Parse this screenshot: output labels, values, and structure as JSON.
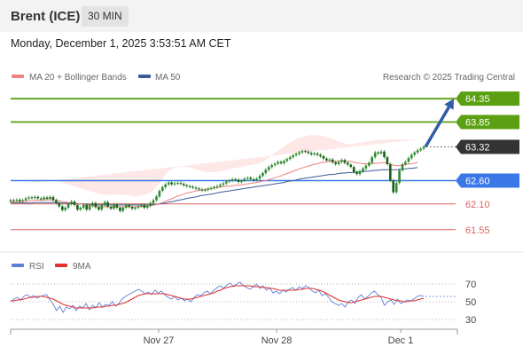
{
  "header": {
    "instrument": "Brent (ICE)",
    "timeframe": "30 MIN"
  },
  "timestamp": "Monday, December 1, 2025 3:53:51 AM CET",
  "colors": {
    "ma20": "#f08080",
    "ma50": "#3a5a98",
    "band_fill": "#fde3e3",
    "green": "#5aa012",
    "blue": "#3b78e7",
    "red": "#e06060",
    "candle": "#2e8b2e",
    "arrow": "#2f5da6",
    "rsi": "#5b7fd6",
    "rsi_ma": "#e23030"
  },
  "legend": {
    "items": [
      {
        "label": "MA 20 + Bollinger Bands",
        "color": "#f08080"
      },
      {
        "label": "MA 50",
        "color": "#3a5a98"
      }
    ],
    "source": "Research © 2025 Trading Central"
  },
  "chart_data": [
    {
      "type": "candlestick",
      "ylim": [
        61.3,
        64.6
      ],
      "x_ticks": [
        "Nov 27",
        "Nov 28",
        "Dec 1"
      ],
      "levels": [
        {
          "value": 64.35,
          "label": "64.35",
          "kind": "resistance"
        },
        {
          "value": 63.85,
          "label": "63.85",
          "kind": "resistance"
        },
        {
          "value": 63.32,
          "label": "63.32",
          "kind": "current"
        },
        {
          "value": 62.6,
          "label": "62.60",
          "kind": "pivot"
        },
        {
          "value": 62.1,
          "label": "62.10",
          "kind": "support"
        },
        {
          "value": 61.55,
          "label": "61.55",
          "kind": "support"
        }
      ],
      "close": [
        62.18,
        62.17,
        62.19,
        62.16,
        62.18,
        62.22,
        62.24,
        62.23,
        62.25,
        62.22,
        62.2,
        62.24,
        62.21,
        62.25,
        62.18,
        62.12,
        62.05,
        61.97,
        62.02,
        62.1,
        62.15,
        62.08,
        61.98,
        62.02,
        62.08,
        61.98,
        62.06,
        62.12,
        62.03,
        61.98,
        62.08,
        62.14,
        62.04,
        62.0,
        62.09,
        62.02,
        61.95,
        62.02,
        62.08,
        62.04,
        62.0,
        62.02,
        62.05,
        62.08,
        62.02,
        62.06,
        62.12,
        62.18,
        62.26,
        62.38,
        62.46,
        62.52,
        62.56,
        62.52,
        62.54,
        62.55,
        62.53,
        62.5,
        62.48,
        62.47,
        62.45,
        62.43,
        62.41,
        62.39,
        62.4,
        62.42,
        62.44,
        62.46,
        62.48,
        62.51,
        62.54,
        62.58,
        62.6,
        62.63,
        62.62,
        62.57,
        62.6,
        62.64,
        62.66,
        62.63,
        62.61,
        62.64,
        62.7,
        62.76,
        62.83,
        62.89,
        62.93,
        62.96,
        63.0,
        62.97,
        63.02,
        63.06,
        63.1,
        63.14,
        63.17,
        63.2,
        63.23,
        63.22,
        63.19,
        63.16,
        63.18,
        63.15,
        63.12,
        63.07,
        63.03,
        63.05,
        62.99,
        62.95,
        63.0,
        63.04,
        62.98,
        62.94,
        62.89,
        62.78,
        62.74,
        62.8,
        62.86,
        62.92,
        62.98,
        63.1,
        63.2,
        63.18,
        63.22,
        63.1,
        62.95,
        62.6,
        62.35,
        62.55,
        62.82,
        62.95,
        63.0,
        63.08,
        63.15,
        63.2,
        63.25,
        63.28,
        63.32
      ],
      "ma20": [
        62.14,
        62.14,
        62.15,
        62.15,
        62.15,
        62.16,
        62.17,
        62.17,
        62.18,
        62.18,
        62.18,
        62.19,
        62.19,
        62.19,
        62.19,
        62.18,
        62.17,
        62.15,
        62.14,
        62.13,
        62.13,
        62.12,
        62.11,
        62.1,
        62.09,
        62.08,
        62.07,
        62.06,
        62.05,
        62.04,
        62.04,
        62.04,
        62.04,
        62.04,
        62.04,
        62.04,
        62.04,
        62.04,
        62.04,
        62.04,
        62.04,
        62.04,
        62.05,
        62.05,
        62.05,
        62.05,
        62.06,
        62.07,
        62.09,
        62.11,
        62.13,
        62.16,
        62.19,
        62.21,
        62.24,
        62.27,
        62.29,
        62.31,
        62.33,
        62.35,
        62.36,
        62.38,
        62.39,
        62.4,
        62.41,
        62.42,
        62.43,
        62.44,
        62.45,
        62.46,
        62.47,
        62.48,
        62.48,
        62.49,
        62.5,
        62.5,
        62.51,
        62.52,
        62.53,
        62.54,
        62.55,
        62.56,
        62.57,
        62.59,
        62.6,
        62.62,
        62.64,
        62.66,
        62.68,
        62.7,
        62.73,
        62.75,
        62.77,
        62.8,
        62.82,
        62.85,
        62.87,
        62.89,
        62.91,
        62.93,
        62.95,
        62.96,
        62.98,
        62.99,
        63.0,
        63.01,
        63.01,
        63.01,
        63.02,
        63.02,
        63.02,
        63.01,
        63.01,
        62.99,
        62.98,
        62.97,
        62.96,
        62.96,
        62.96,
        62.96,
        62.97,
        62.97,
        62.98,
        62.98,
        62.97,
        62.95,
        62.93,
        62.92,
        62.92,
        62.93,
        62.94,
        62.95,
        62.96,
        62.97,
        62.99
      ],
      "ma50": [
        62.12,
        62.12,
        62.12,
        62.12,
        62.12,
        62.12,
        62.12,
        62.12,
        62.13,
        62.13,
        62.13,
        62.13,
        62.13,
        62.13,
        62.13,
        62.13,
        62.12,
        62.12,
        62.12,
        62.11,
        62.11,
        62.11,
        62.1,
        62.1,
        62.1,
        62.09,
        62.09,
        62.09,
        62.08,
        62.08,
        62.08,
        62.08,
        62.08,
        62.08,
        62.08,
        62.08,
        62.08,
        62.08,
        62.08,
        62.08,
        62.08,
        62.08,
        62.08,
        62.08,
        62.08,
        62.08,
        62.08,
        62.09,
        62.09,
        62.1,
        62.11,
        62.12,
        62.14,
        62.15,
        62.16,
        62.18,
        62.19,
        62.2,
        62.22,
        62.23,
        62.24,
        62.25,
        62.27,
        62.28,
        62.29,
        62.3,
        62.31,
        62.32,
        62.34,
        62.35,
        62.36,
        62.37,
        62.38,
        62.39,
        62.4,
        62.41,
        62.42,
        62.43,
        62.44,
        62.45,
        62.46,
        62.47,
        62.48,
        62.49,
        62.5,
        62.51,
        62.52,
        62.53,
        62.54,
        62.55,
        62.56,
        62.58,
        62.59,
        62.6,
        62.61,
        62.63,
        62.64,
        62.65,
        62.66,
        62.67,
        62.68,
        62.69,
        62.7,
        62.71,
        62.72,
        62.73,
        62.73,
        62.74,
        62.75,
        62.76,
        62.76,
        62.77,
        62.77,
        62.78,
        62.78,
        62.79,
        62.79,
        62.8,
        62.8,
        62.81,
        62.82,
        62.82,
        62.83,
        62.83,
        62.83,
        62.83,
        62.83,
        62.83,
        62.84,
        62.84,
        62.85,
        62.86,
        62.86,
        62.87,
        62.88
      ],
      "band_upper": [
        62.5,
        62.5,
        62.52,
        62.52,
        62.53,
        62.55,
        62.56,
        62.57,
        62.58,
        62.59,
        62.59,
        62.6,
        62.6,
        62.61,
        62.61,
        62.6,
        62.58,
        62.55,
        62.53,
        62.52,
        62.5,
        62.48,
        62.46,
        62.44,
        62.42,
        62.4,
        62.38,
        62.36,
        62.34,
        62.32,
        62.31,
        62.3,
        62.3,
        62.3,
        62.3,
        62.3,
        62.3,
        62.29,
        62.29,
        62.28,
        62.27,
        62.26,
        62.27,
        62.28,
        62.29,
        62.31,
        62.34,
        62.39,
        62.46,
        62.55,
        62.64,
        62.73,
        62.8,
        62.84,
        62.87,
        62.89,
        62.9,
        62.9,
        62.89,
        62.88,
        62.86,
        62.84,
        62.82,
        62.8,
        62.79,
        62.78,
        62.78,
        62.78,
        62.79,
        62.8,
        62.81,
        62.83,
        62.84,
        62.86,
        62.87,
        62.88,
        62.89,
        62.9,
        62.92,
        62.93,
        62.94,
        62.95,
        62.97,
        63.0,
        63.04,
        63.09,
        63.14,
        63.19,
        63.24,
        63.28,
        63.33,
        63.37,
        63.41,
        63.45,
        63.48,
        63.51,
        63.53,
        63.55,
        63.56,
        63.57,
        63.57,
        63.57,
        63.56,
        63.55,
        63.53,
        63.51,
        63.49,
        63.46,
        63.43,
        63.41,
        63.39,
        63.38,
        63.38,
        63.39,
        63.4,
        63.41,
        63.42,
        63.43,
        63.44,
        63.45,
        63.46,
        63.47,
        63.47,
        63.47,
        63.48,
        63.48,
        63.48,
        63.48,
        63.48,
        63.48,
        63.48,
        63.48,
        63.48,
        63.48,
        63.48
      ],
      "band_lower": [
        61.78,
        61.78,
        61.78,
        61.78,
        61.77,
        61.77,
        61.78,
        61.77,
        61.78,
        61.77,
        61.77,
        61.78,
        61.78,
        61.77,
        61.77,
        61.76,
        61.76,
        61.75,
        61.75,
        61.74,
        61.76,
        61.76,
        61.76,
        61.76,
        61.76,
        61.76,
        61.76,
        61.76,
        61.76,
        61.76,
        61.77,
        61.78,
        61.78,
        61.78,
        61.78,
        61.78,
        61.78,
        61.79,
        61.79,
        61.8,
        61.81,
        61.82,
        61.83,
        61.82,
        61.81,
        61.79,
        61.78,
        61.75,
        61.72,
        61.67,
        61.62,
        61.59,
        61.58,
        61.58,
        61.61,
        61.65,
        61.68,
        61.72,
        61.77,
        61.82,
        61.86,
        61.92,
        61.96,
        62.0,
        62.03,
        62.06,
        62.08,
        62.1,
        62.11,
        62.12,
        62.13,
        62.13,
        62.12,
        62.12,
        62.13,
        62.12,
        62.13,
        62.14,
        62.14,
        62.15,
        62.16,
        62.17,
        62.17,
        62.18,
        62.16,
        62.15,
        62.14,
        62.13,
        62.12,
        62.12,
        62.13,
        62.13,
        62.13,
        62.15,
        62.16,
        62.19,
        62.21,
        62.23,
        62.26,
        62.29,
        62.33,
        62.35,
        62.4,
        62.43,
        62.47,
        62.51,
        62.53,
        62.56,
        62.61,
        62.63,
        62.65,
        62.64,
        62.64,
        62.59,
        62.56,
        62.53,
        62.51,
        62.49,
        62.48,
        62.47,
        62.47,
        62.47,
        62.48,
        62.49,
        62.47,
        62.42,
        62.38,
        62.36,
        62.36,
        62.38,
        62.4,
        62.42,
        62.44,
        62.46,
        62.5
      ],
      "forecast_arrow": {
        "from": 63.32,
        "to": 64.35
      }
    },
    {
      "type": "line",
      "ylim": [
        20,
        80
      ],
      "y_ticks": [
        70,
        50,
        30
      ],
      "legend": [
        {
          "label": "RSI",
          "color": "#5b7fd6"
        },
        {
          "label": "9MA",
          "color": "#e23030"
        }
      ],
      "series": [
        {
          "name": "RSI",
          "values": [
            50,
            53,
            55,
            52,
            56,
            58,
            55,
            57,
            54,
            56,
            57,
            58,
            52,
            47,
            40,
            45,
            38,
            44,
            42,
            46,
            40,
            45,
            43,
            48,
            41,
            46,
            43,
            49,
            44,
            47,
            46,
            50,
            45,
            48,
            53,
            56,
            58,
            60,
            62,
            64,
            62,
            59,
            61,
            58,
            63,
            60,
            62,
            58,
            55,
            53,
            56,
            52,
            54,
            51,
            53,
            50,
            55,
            58,
            57,
            60,
            62,
            59,
            63,
            66,
            68,
            65,
            69,
            71,
            67,
            70,
            72,
            68,
            66,
            64,
            67,
            70,
            65,
            68,
            63,
            66,
            60,
            62,
            59,
            63,
            61,
            64,
            66,
            63,
            67,
            65,
            68,
            66,
            62,
            60,
            63,
            57,
            59,
            55,
            50,
            48,
            46,
            48,
            44,
            50,
            52,
            48,
            55,
            58,
            53,
            56,
            60,
            62,
            58,
            55,
            46,
            50,
            52,
            47,
            53,
            48,
            50,
            52,
            51,
            53,
            56,
            57,
            56
          ]
        },
        {
          "name": "9MA",
          "values": [
            51,
            51,
            52,
            52,
            53,
            54,
            55,
            55,
            56,
            56,
            56,
            55,
            54,
            53,
            51,
            49,
            47,
            46,
            45,
            44,
            43,
            43,
            43,
            43,
            43,
            43,
            44,
            44,
            44,
            45,
            45,
            46,
            46,
            47,
            48,
            49,
            51,
            53,
            55,
            57,
            58,
            59,
            59,
            59,
            59,
            59,
            59,
            59,
            58,
            57,
            56,
            55,
            54,
            53,
            53,
            53,
            54,
            55,
            56,
            57,
            58,
            59,
            60,
            62,
            63,
            65,
            66,
            67,
            68,
            68,
            68,
            68,
            68,
            68,
            67,
            67,
            67,
            66,
            66,
            65,
            65,
            64,
            63,
            63,
            63,
            63,
            63,
            63,
            64,
            64,
            65,
            65,
            65,
            64,
            63,
            62,
            60,
            58,
            56,
            54,
            52,
            51,
            50,
            49,
            49,
            50,
            51,
            52,
            53,
            54,
            55,
            56,
            56,
            56,
            55,
            54,
            53,
            52,
            51,
            51,
            50,
            50,
            51,
            51,
            52,
            53,
            54
          ]
        }
      ]
    }
  ]
}
